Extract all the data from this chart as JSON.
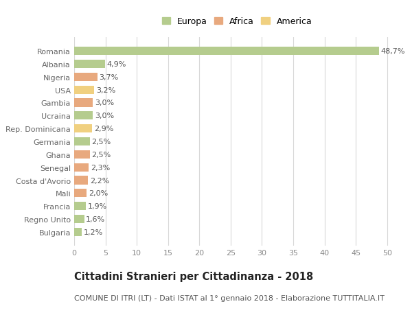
{
  "categories": [
    "Romania",
    "Albania",
    "Nigeria",
    "USA",
    "Gambia",
    "Ucraina",
    "Rep. Dominicana",
    "Germania",
    "Ghana",
    "Senegal",
    "Costa d'Avorio",
    "Mali",
    "Francia",
    "Regno Unito",
    "Bulgaria"
  ],
  "values": [
    48.7,
    4.9,
    3.7,
    3.2,
    3.0,
    3.0,
    2.9,
    2.5,
    2.5,
    2.3,
    2.2,
    2.0,
    1.9,
    1.6,
    1.2
  ],
  "labels": [
    "48,7%",
    "4,9%",
    "3,7%",
    "3,2%",
    "3,0%",
    "3,0%",
    "2,9%",
    "2,5%",
    "2,5%",
    "2,3%",
    "2,2%",
    "2,0%",
    "1,9%",
    "1,6%",
    "1,2%"
  ],
  "colors": [
    "#b5cc8e",
    "#b5cc8e",
    "#e8a97e",
    "#f0d080",
    "#e8a97e",
    "#b5cc8e",
    "#f0d080",
    "#b5cc8e",
    "#e8a97e",
    "#e8a97e",
    "#e8a97e",
    "#e8a97e",
    "#b5cc8e",
    "#b5cc8e",
    "#b5cc8e"
  ],
  "legend": [
    {
      "label": "Europa",
      "color": "#b5cc8e"
    },
    {
      "label": "Africa",
      "color": "#e8a97e"
    },
    {
      "label": "America",
      "color": "#f0d080"
    }
  ],
  "xlim": [
    0,
    52
  ],
  "xticks": [
    0,
    5,
    10,
    15,
    20,
    25,
    30,
    35,
    40,
    45,
    50
  ],
  "title": "Cittadini Stranieri per Cittadinanza - 2018",
  "subtitle": "COMUNE DI ITRI (LT) - Dati ISTAT al 1° gennaio 2018 - Elaborazione TUTTITALIA.IT",
  "background_color": "#ffffff",
  "grid_color": "#d8d8d8",
  "bar_height": 0.65,
  "label_fontsize": 8,
  "tick_fontsize": 8,
  "ytick_fontsize": 8,
  "title_fontsize": 10.5,
  "subtitle_fontsize": 8,
  "legend_fontsize": 9
}
